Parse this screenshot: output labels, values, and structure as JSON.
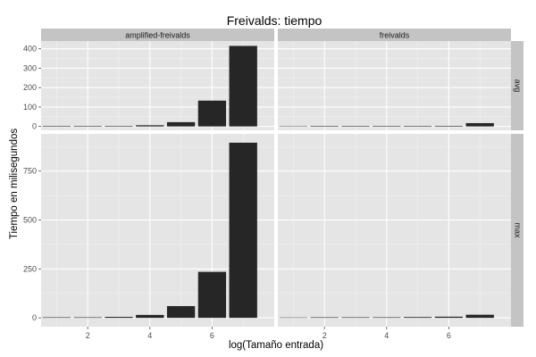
{
  "chart_data": {
    "type": "bar",
    "title": "Freivalds: tiempo",
    "xlabel": "log(Tamaño entrada)",
    "ylabel": "Tiempo en milisegundos",
    "facet_columns": [
      "amplified-freivalds",
      "freivalds"
    ],
    "facet_rows": [
      "avg",
      "max"
    ],
    "x_ticks": [
      2,
      4,
      6
    ],
    "xlim": [
      0.5,
      8.0
    ],
    "grid": true,
    "panels": [
      {
        "column": "amplified-freivalds",
        "row": "avg",
        "ylim": [
          -20,
          440
        ],
        "y_ticks": [
          0,
          100,
          200,
          300,
          400
        ],
        "x": [
          1,
          2,
          3,
          4,
          5,
          6,
          7
        ],
        "values": [
          0.3,
          1.5,
          2,
          6,
          22,
          133,
          415
        ]
      },
      {
        "column": "freivalds",
        "row": "avg",
        "ylim": [
          -20,
          440
        ],
        "y_ticks": [
          0,
          100,
          200,
          300,
          400
        ],
        "x": [
          1,
          2,
          3,
          4,
          5,
          6,
          7
        ],
        "values": [
          0,
          0.2,
          0.3,
          0.5,
          2,
          3,
          17
        ]
      },
      {
        "column": "amplified-freivalds",
        "row": "max",
        "ylim": [
          -45,
          940
        ],
        "y_ticks": [
          0,
          250,
          500,
          750
        ],
        "x": [
          1,
          2,
          3,
          4,
          5,
          6,
          7
        ],
        "values": [
          1,
          2,
          5,
          15,
          60,
          235,
          895
        ]
      },
      {
        "column": "freivalds",
        "row": "max",
        "ylim": [
          -45,
          940
        ],
        "y_ticks": [
          0,
          250,
          500,
          750
        ],
        "x": [
          1,
          2,
          3,
          4,
          5,
          6,
          7
        ],
        "values": [
          0,
          0.5,
          1,
          2,
          4,
          6,
          16
        ]
      }
    ]
  }
}
